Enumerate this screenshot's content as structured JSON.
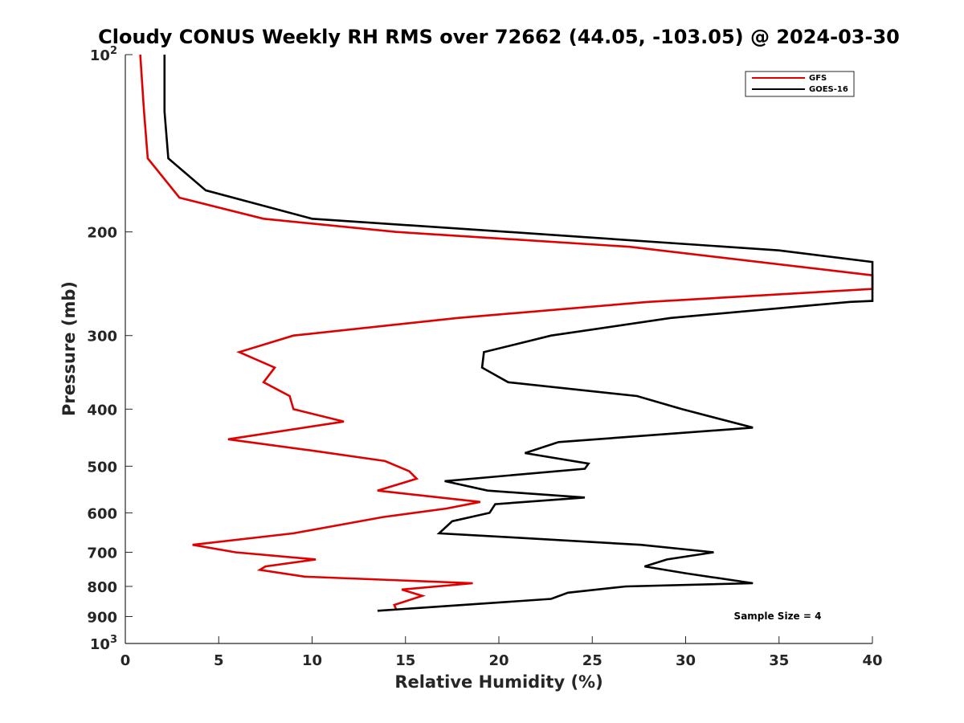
{
  "chart_data": {
    "type": "line",
    "title": "Cloudy CONUS Weekly RH RMS over 72662 (44.05, -103.05) @ 2024-03-30",
    "xlabel": "Relative Humidity (%)",
    "ylabel": "Pressure (mb)",
    "xlim": [
      0,
      40
    ],
    "ylim": [
      100,
      1000
    ],
    "y_scale": "log",
    "y_reversed": true,
    "grid": false,
    "legend_position": "top-right",
    "x_ticks": [
      "0",
      "5",
      "10",
      "15",
      "20",
      "25",
      "30",
      "35",
      "40"
    ],
    "y_ticks": [
      {
        "value": 100,
        "base": "10",
        "exp": "2"
      },
      {
        "value": 200,
        "label": "200"
      },
      {
        "value": 300,
        "label": "300"
      },
      {
        "value": 400,
        "label": "400"
      },
      {
        "value": 500,
        "label": "500"
      },
      {
        "value": 600,
        "label": "600"
      },
      {
        "value": 700,
        "label": "700"
      },
      {
        "value": 800,
        "label": "800"
      },
      {
        "value": 900,
        "label": "900"
      },
      {
        "value": 1000,
        "base": "10",
        "exp": "3"
      }
    ],
    "annotation": "Sample Size = 4",
    "series": [
      {
        "name": "GFS",
        "color": "#e00000",
        "points": [
          [
            0.8,
            100
          ],
          [
            1.0,
            125
          ],
          [
            1.2,
            150
          ],
          [
            2.9,
            175
          ],
          [
            7.4,
            190
          ],
          [
            14.5,
            200
          ],
          [
            27.0,
            212
          ],
          [
            40.0,
            237
          ],
          [
            40.0,
            250
          ],
          [
            28.0,
            263
          ],
          [
            17.8,
            280
          ],
          [
            9.0,
            300
          ],
          [
            6.1,
            320
          ],
          [
            8.0,
            340
          ],
          [
            7.4,
            360
          ],
          [
            8.8,
            380
          ],
          [
            9.0,
            400
          ],
          [
            11.7,
            420
          ],
          [
            5.5,
            450
          ],
          [
            9.9,
            470
          ],
          [
            13.9,
            490
          ],
          [
            15.2,
            510
          ],
          [
            15.6,
            525
          ],
          [
            13.5,
            550
          ],
          [
            19.0,
            575
          ],
          [
            17.2,
            590
          ],
          [
            13.8,
            610
          ],
          [
            9.0,
            650
          ],
          [
            3.6,
            680
          ],
          [
            5.9,
            700
          ],
          [
            10.2,
            720
          ],
          [
            7.5,
            740
          ],
          [
            7.2,
            750
          ],
          [
            9.6,
            770
          ],
          [
            18.6,
            790
          ],
          [
            14.8,
            810
          ],
          [
            15.9,
            830
          ],
          [
            14.4,
            860
          ],
          [
            14.5,
            875
          ]
        ]
      },
      {
        "name": "GOES-16",
        "color": "#000000",
        "points": [
          [
            2.1,
            100
          ],
          [
            2.1,
            125
          ],
          [
            2.3,
            150
          ],
          [
            4.3,
            170
          ],
          [
            10.0,
            190
          ],
          [
            20.5,
            200
          ],
          [
            35.0,
            215
          ],
          [
            40.0,
            225
          ],
          [
            40.0,
            262
          ],
          [
            38.8,
            263
          ],
          [
            29.2,
            280
          ],
          [
            22.8,
            300
          ],
          [
            19.2,
            320
          ],
          [
            19.1,
            340
          ],
          [
            20.5,
            360
          ],
          [
            27.4,
            380
          ],
          [
            29.8,
            400
          ],
          [
            33.6,
            430
          ],
          [
            23.2,
            455
          ],
          [
            21.4,
            475
          ],
          [
            24.8,
            495
          ],
          [
            24.6,
            505
          ],
          [
            17.1,
            530
          ],
          [
            19.4,
            550
          ],
          [
            24.6,
            565
          ],
          [
            19.8,
            580
          ],
          [
            19.5,
            600
          ],
          [
            17.5,
            620
          ],
          [
            16.8,
            650
          ],
          [
            20.5,
            660
          ],
          [
            27.6,
            680
          ],
          [
            31.5,
            700
          ],
          [
            29.0,
            720
          ],
          [
            27.8,
            740
          ],
          [
            30.0,
            760
          ],
          [
            33.6,
            790
          ],
          [
            26.8,
            800
          ],
          [
            23.7,
            820
          ],
          [
            22.8,
            840
          ],
          [
            13.5,
            880
          ]
        ]
      }
    ]
  }
}
